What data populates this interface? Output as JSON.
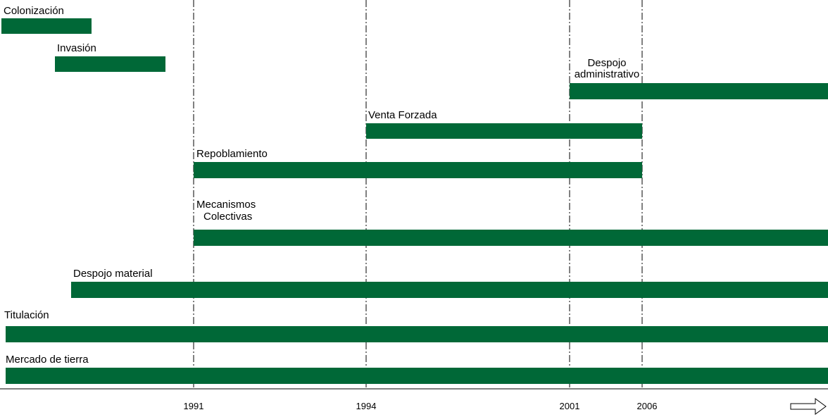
{
  "chart_data": {
    "type": "bar",
    "subtype": "timeline",
    "bar_color": "#006837",
    "x_ticks": [
      "1991",
      "1994",
      "2001",
      "2006"
    ],
    "x_axis_open_ended": true,
    "x_axis_arrow_icon": "outline-right-arrow-icon",
    "gridlines": "vertical dash-dot at each tick",
    "series": [
      {
        "label": [
          "Colonización"
        ],
        "start": "before 1991",
        "end": "before 1991"
      },
      {
        "label": [
          "Invasión"
        ],
        "start": "before 1991",
        "end": "before 1991"
      },
      {
        "label": [
          "Despojo",
          "administrativo"
        ],
        "start": "2001",
        "end": "ongoing"
      },
      {
        "label": [
          "Venta Forzada"
        ],
        "start": "1994",
        "end": "2006"
      },
      {
        "label": [
          "Repoblamiento"
        ],
        "start": "1991",
        "end": "2006"
      },
      {
        "label": [
          "Mecanismos",
          "Colectivas"
        ],
        "start": "1991",
        "end": "ongoing"
      },
      {
        "label": [
          "Despojo material"
        ],
        "start": "before 1991",
        "end": "ongoing"
      },
      {
        "label": [
          "Titulación"
        ],
        "start": "before 1991",
        "end": "ongoing"
      },
      {
        "label": [
          "Mercado de tierra"
        ],
        "start": "before 1991",
        "end": "ongoing"
      }
    ]
  }
}
